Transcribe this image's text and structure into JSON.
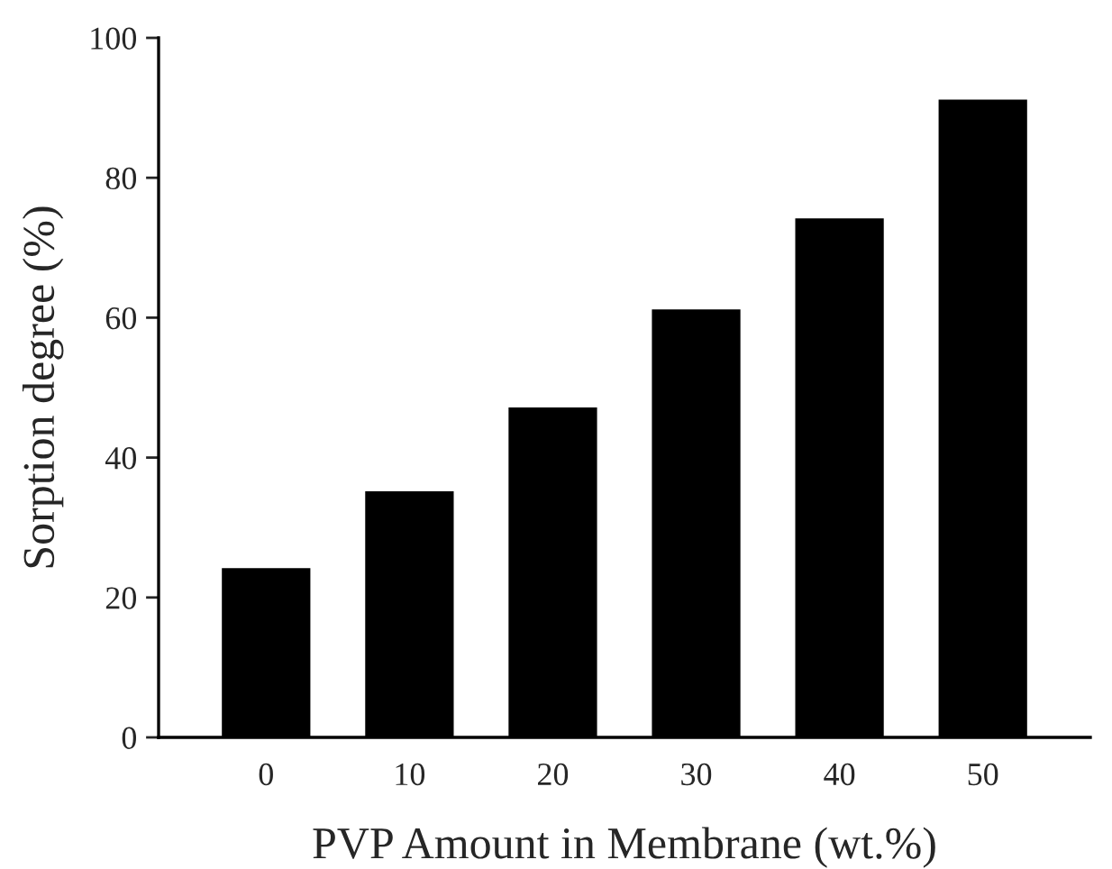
{
  "chart_data": {
    "type": "bar",
    "xlabel": "PVP Amount in Membrane (wt.%)",
    "ylabel": "Sorption degree (%)",
    "categories": [
      "0",
      "10",
      "20",
      "30",
      "40",
      "50"
    ],
    "values": [
      24,
      35,
      47,
      61,
      74,
      91
    ],
    "color": "#000000",
    "ylim": [
      0,
      100
    ],
    "yticks": [
      0,
      20,
      40,
      60,
      80,
      100
    ],
    "grid": false,
    "legend": false
  }
}
